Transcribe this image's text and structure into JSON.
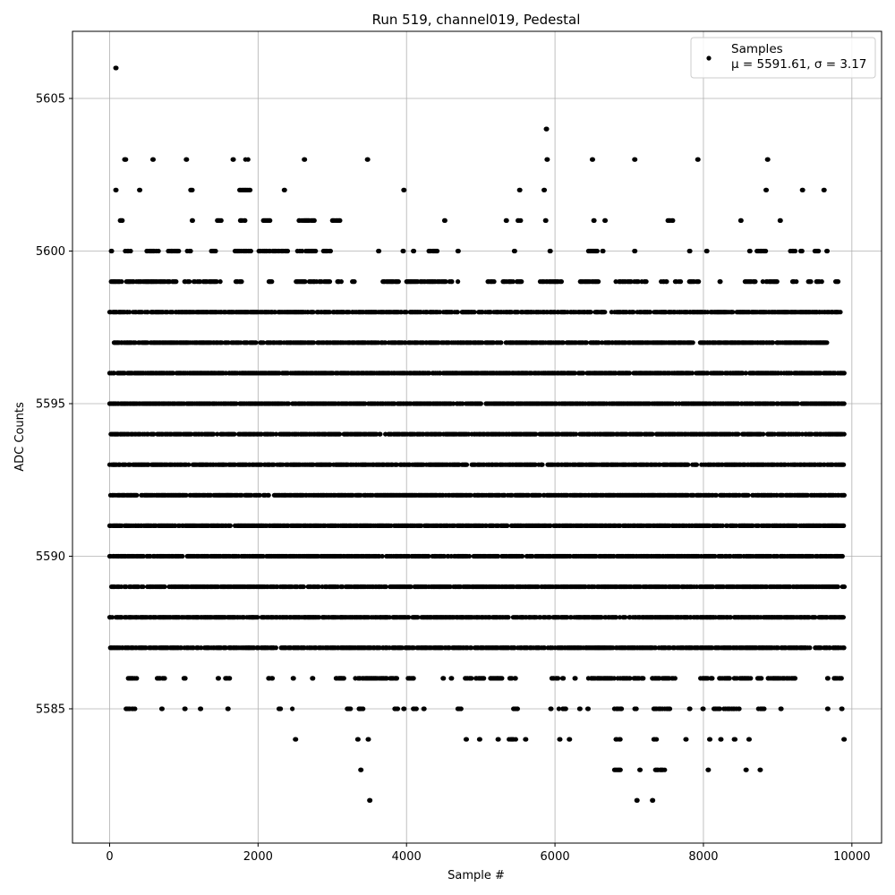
{
  "chart_data": {
    "type": "scatter",
    "title": "Run 519, channel019, Pedestal",
    "xlabel": "Sample #",
    "ylabel": "ADC Counts",
    "xlim": [
      -500,
      10400
    ],
    "ylim": [
      5580.6,
      5607.2
    ],
    "xticks": [
      0,
      2000,
      4000,
      6000,
      8000,
      10000
    ],
    "yticks": [
      5585,
      5590,
      5595,
      5600,
      5605
    ],
    "grid": true,
    "legend_position": "top-right",
    "marker_color": "#000000",
    "series": [
      {
        "name": "Samples",
        "stats_label": "μ = 5591.61, σ = 3.17",
        "mean": 5591.61,
        "sigma": 3.17,
        "sample_count": 10000,
        "band_x_ranges": {
          "5606": [
            [
              80,
              90
            ]
          ],
          "5604": [
            [
              5880,
              5890
            ]
          ],
          "5603": [
            [
              200,
              220
            ],
            [
              580,
              590
            ],
            [
              1030,
              1040
            ],
            [
              1660,
              1670
            ],
            [
              1820,
              1890
            ],
            [
              2620,
              2630
            ],
            [
              3470,
              3480
            ],
            [
              5890,
              5900
            ],
            [
              6500,
              6510
            ],
            [
              7070,
              7080
            ],
            [
              7920,
              7930
            ],
            [
              8860,
              8870
            ]
          ],
          "5602": [
            [
              80,
              90
            ],
            [
              400,
              410
            ],
            [
              1090,
              1120
            ],
            [
              1750,
              1900
            ],
            [
              2350,
              2360
            ],
            [
              3960,
              3970
            ],
            [
              5520,
              5530
            ],
            [
              5850,
              5860
            ],
            [
              8840,
              8850
            ],
            [
              9330,
              9340
            ],
            [
              9620,
              9630
            ]
          ],
          "5601": [
            [
              130,
              180
            ],
            [
              1110,
              1120
            ],
            [
              1450,
              1520
            ],
            [
              1760,
              1830
            ],
            [
              2070,
              2170
            ],
            [
              2550,
              2760
            ],
            [
              3000,
              3110
            ],
            [
              4510,
              4520
            ],
            [
              5340,
              5350
            ],
            [
              5500,
              5550
            ],
            [
              5870,
              5880
            ],
            [
              6520,
              6530
            ],
            [
              6670,
              6680
            ],
            [
              7520,
              7590
            ],
            [
              8500,
              8510
            ],
            [
              9030,
              9040
            ]
          ],
          "5600": [
            [
              20,
              30
            ],
            [
              210,
              290
            ],
            [
              500,
              690
            ],
            [
              790,
              940
            ],
            [
              1030,
              1100
            ],
            [
              1370,
              1450
            ],
            [
              1660,
              1930
            ],
            [
              2010,
              2400
            ],
            [
              2530,
              2780
            ],
            [
              2880,
              2980
            ],
            [
              3620,
              3630
            ],
            [
              3950,
              3960
            ],
            [
              4090,
              4100
            ],
            [
              4300,
              4420
            ],
            [
              4690,
              4700
            ],
            [
              5330,
              5360
            ],
            [
              5450,
              5460
            ],
            [
              5930,
              5940
            ],
            [
              6450,
              6580
            ],
            [
              6640,
              6650
            ],
            [
              7070,
              7080
            ],
            [
              7810,
              7820
            ],
            [
              8040,
              8050
            ],
            [
              8620,
              8630
            ],
            [
              8720,
              8850
            ],
            [
              9160,
              9240
            ],
            [
              9310,
              9330
            ],
            [
              9500,
              9560
            ],
            [
              9660,
              9670
            ]
          ],
          "5599": [
            [
              20,
              900
            ],
            [
              1010,
              1500
            ],
            [
              1700,
              1780
            ],
            [
              2130,
              2200
            ],
            [
              2500,
              2980
            ],
            [
              3070,
              3130
            ],
            [
              3270,
              3300
            ],
            [
              3670,
              3900
            ],
            [
              4000,
              4700
            ],
            [
              5080,
              5180
            ],
            [
              5300,
              5560
            ],
            [
              5800,
              6100
            ],
            [
              6340,
              6600
            ],
            [
              6820,
              7140
            ],
            [
              7170,
              7240
            ],
            [
              7430,
              7520
            ],
            [
              7620,
              7700
            ],
            [
              7810,
              7940
            ],
            [
              8190,
              8230
            ],
            [
              8560,
              8700
            ],
            [
              8800,
              9000
            ],
            [
              9200,
              9260
            ],
            [
              9400,
              9600
            ],
            [
              9780,
              9820
            ]
          ],
          "5598": [
            [
              0,
              9850
            ]
          ],
          "5597": [
            [
              60,
              9670
            ]
          ],
          "5596": [
            [
              0,
              9900
            ]
          ],
          "5595": [
            [
              0,
              9900
            ]
          ],
          "5594": [
            [
              0,
              9900
            ]
          ],
          "5593": [
            [
              0,
              9900
            ]
          ],
          "5592": [
            [
              0,
              9900
            ]
          ],
          "5591": [
            [
              0,
              9900
            ]
          ],
          "5590": [
            [
              0,
              9900
            ]
          ],
          "5589": [
            [
              0,
              9900
            ]
          ],
          "5588": [
            [
              0,
              9900
            ]
          ],
          "5587": [
            [
              0,
              9900
            ]
          ],
          "5586": [
            [
              250,
              380
            ],
            [
              640,
              760
            ],
            [
              1000,
              1020
            ],
            [
              1460,
              1470
            ],
            [
              1560,
              1620
            ],
            [
              2140,
              2200
            ],
            [
              2470,
              2480
            ],
            [
              2730,
              2740
            ],
            [
              3050,
              3170
            ],
            [
              3310,
              3880
            ],
            [
              4020,
              4100
            ],
            [
              4490,
              4500
            ],
            [
              4600,
              4610
            ],
            [
              4790,
              5050
            ],
            [
              5130,
              5290
            ],
            [
              5390,
              5480
            ],
            [
              5940,
              6120
            ],
            [
              6240,
              6280
            ],
            [
              6450,
              7200
            ],
            [
              7310,
              7620
            ],
            [
              7960,
              8060
            ],
            [
              8100,
              8120
            ],
            [
              8200,
              8640
            ],
            [
              8730,
              8800
            ],
            [
              8870,
              9240
            ],
            [
              9670,
              9680
            ],
            [
              9760,
              9870
            ]
          ],
          "5585": [
            [
              220,
              370
            ],
            [
              700,
              710
            ],
            [
              1010,
              1020
            ],
            [
              1220,
              1230
            ],
            [
              1590,
              1600
            ],
            [
              2280,
              2310
            ],
            [
              2440,
              2470
            ],
            [
              3200,
              3250
            ],
            [
              3350,
              3420
            ],
            [
              3840,
              3890
            ],
            [
              3960,
              3970
            ],
            [
              4090,
              4140
            ],
            [
              4230,
              4240
            ],
            [
              4690,
              4740
            ],
            [
              5440,
              5520
            ],
            [
              5940,
              5950
            ],
            [
              6040,
              6150
            ],
            [
              6330,
              6340
            ],
            [
              6440,
              6450
            ],
            [
              6800,
              6910
            ],
            [
              7060,
              7110
            ],
            [
              7270,
              7560
            ],
            [
              7810,
              7820
            ],
            [
              7990,
              8000
            ],
            [
              8140,
              8490
            ],
            [
              8740,
              8820
            ],
            [
              9040,
              9050
            ],
            [
              9670,
              9680
            ],
            [
              9860,
              9870
            ]
          ],
          "5584": [
            [
              2500,
              2510
            ],
            [
              3340,
              3350
            ],
            [
              3480,
              3490
            ],
            [
              4800,
              4810
            ],
            [
              4980,
              4990
            ],
            [
              5230,
              5240
            ],
            [
              5380,
              5480
            ],
            [
              5600,
              5610
            ],
            [
              6060,
              6070
            ],
            [
              6190,
              6200
            ],
            [
              6820,
              6890
            ],
            [
              7330,
              7380
            ],
            [
              7760,
              7770
            ],
            [
              8080,
              8090
            ],
            [
              8230,
              8240
            ],
            [
              8400,
              8440
            ],
            [
              8610,
              8620
            ],
            [
              9890,
              9900
            ]
          ],
          "5583": [
            [
              3380,
              3390
            ],
            [
              6800,
              6900
            ],
            [
              7140,
              7150
            ],
            [
              7340,
              7480
            ],
            [
              8060,
              8070
            ],
            [
              8570,
              8580
            ],
            [
              8760,
              8770
            ]
          ],
          "5582": [
            [
              3500,
              3510
            ],
            [
              7100,
              7110
            ],
            [
              7310,
              7320
            ]
          ]
        }
      }
    ]
  }
}
